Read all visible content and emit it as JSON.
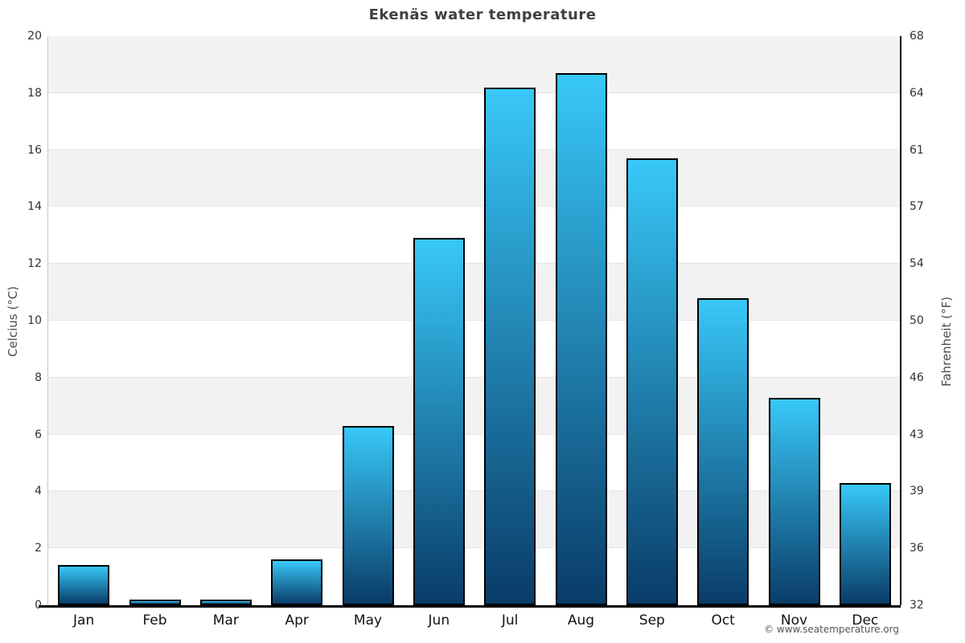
{
  "title": "Ekenäs water temperature",
  "copyright": "© www.seatemperature.org",
  "chart_data": {
    "type": "bar",
    "title": "Ekenäs water temperature",
    "categories": [
      "Jan",
      "Feb",
      "Mar",
      "Apr",
      "May",
      "Jun",
      "Jul",
      "Aug",
      "Sep",
      "Oct",
      "Nov",
      "Dec"
    ],
    "values": [
      1.4,
      0.2,
      0.2,
      1.6,
      6.3,
      12.9,
      18.2,
      18.7,
      15.7,
      10.8,
      7.3,
      4.3
    ],
    "series_name": "Water temperature (°C)",
    "ylabel_left": "Celcius (°C)",
    "ylabel_right": "Fahrenheit (°F)",
    "yticks_left": [
      0,
      2,
      4,
      6,
      8,
      10,
      12,
      14,
      16,
      18,
      20
    ],
    "yticks_right": [
      32,
      36,
      39,
      43,
      46,
      50,
      54,
      57,
      61,
      64,
      68
    ],
    "ylim": [
      0,
      20
    ],
    "xlabel": "",
    "grid": "alternating-horizontal-bands",
    "legend": "none",
    "colors": {
      "bar_gradient_top": "#38c8f8",
      "bar_gradient_bottom": "#0a3c68",
      "bar_border": "#000000",
      "band_shaded": "#f2f2f2",
      "band_plain": "#ffffff",
      "gridline": "#e5e5e5",
      "axis_bottom": "#000000",
      "title_text": "#404040",
      "tick_text": "#333333"
    }
  }
}
